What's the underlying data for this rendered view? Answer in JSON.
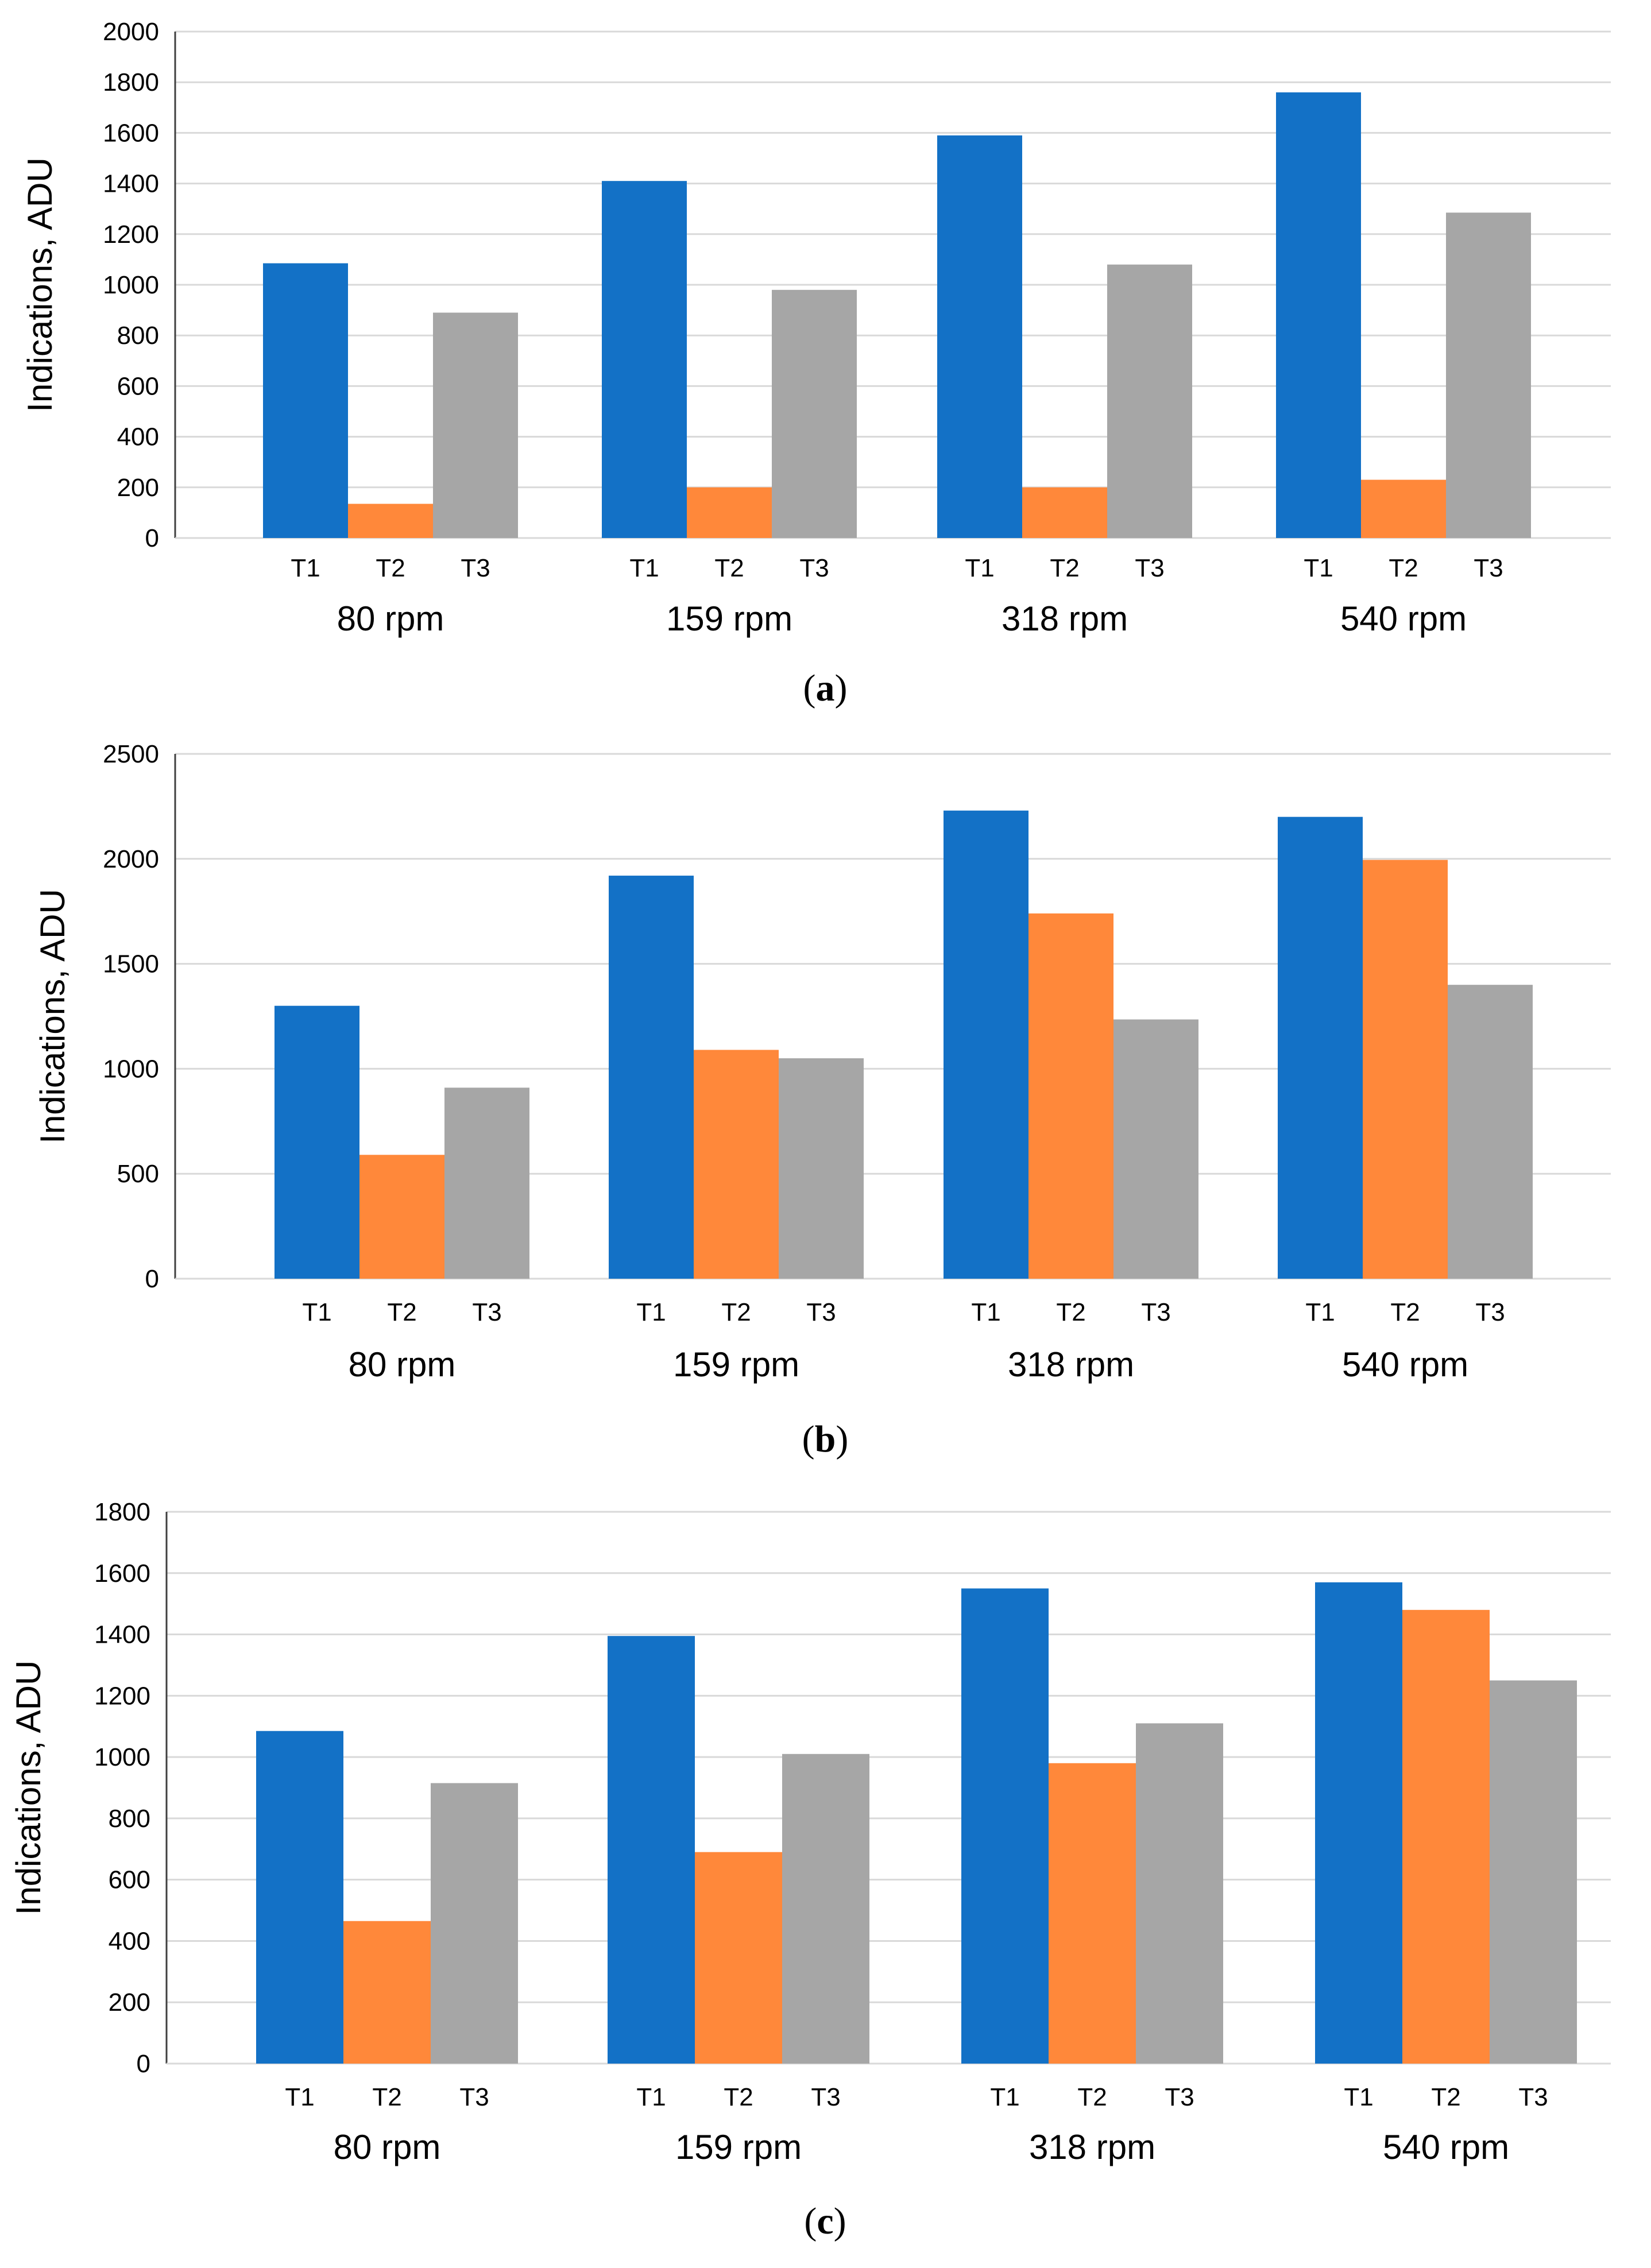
{
  "colors": {
    "T1": "#1371c6",
    "T2": "#ff883a",
    "T3": "#a6a6a6"
  },
  "chart_data": [
    {
      "type": "bar",
      "panel": "a",
      "caption": "(a)",
      "ylabel": "Indications, ADU",
      "ylim": [
        0,
        2000
      ],
      "yticks": [
        "0",
        "200",
        "400",
        "600",
        "800",
        "1000",
        "1200",
        "1400",
        "1600",
        "1800",
        "2000"
      ],
      "categories": [
        "80 rpm",
        "159 rpm",
        "318 rpm",
        "540 rpm"
      ],
      "series": [
        {
          "name": "T1",
          "values": [
            1085,
            1410,
            1590,
            1760
          ]
        },
        {
          "name": "T2",
          "values": [
            135,
            200,
            200,
            230
          ]
        },
        {
          "name": "T3",
          "values": [
            890,
            980,
            1080,
            1285
          ]
        }
      ]
    },
    {
      "type": "bar",
      "panel": "b",
      "caption": "(b)",
      "ylabel": "Indications, ADU",
      "ylim": [
        0,
        2500
      ],
      "yticks": [
        "0",
        "500",
        "1000",
        "1500",
        "2000",
        "2500"
      ],
      "categories": [
        "80 rpm",
        "159 rpm",
        "318 rpm",
        "540 rpm"
      ],
      "series": [
        {
          "name": "T1",
          "values": [
            1300,
            1920,
            2230,
            2200
          ]
        },
        {
          "name": "T2",
          "values": [
            590,
            1090,
            1740,
            1995
          ]
        },
        {
          "name": "T3",
          "values": [
            910,
            1050,
            1235,
            1400
          ]
        }
      ]
    },
    {
      "type": "bar",
      "panel": "c",
      "caption": "(c)",
      "ylabel": "Indications, ADU",
      "ylim": [
        0,
        1800
      ],
      "yticks": [
        "0",
        "200",
        "400",
        "600",
        "800",
        "1000",
        "1200",
        "1400",
        "1600",
        "1800"
      ],
      "categories": [
        "80 rpm",
        "159 rpm",
        "318 rpm",
        "540 rpm"
      ],
      "series": [
        {
          "name": "T1",
          "values": [
            1085,
            1395,
            1550,
            1570
          ]
        },
        {
          "name": "T2",
          "values": [
            465,
            690,
            980,
            1480
          ]
        },
        {
          "name": "T3",
          "values": [
            915,
            1010,
            1110,
            1250
          ]
        }
      ]
    }
  ]
}
